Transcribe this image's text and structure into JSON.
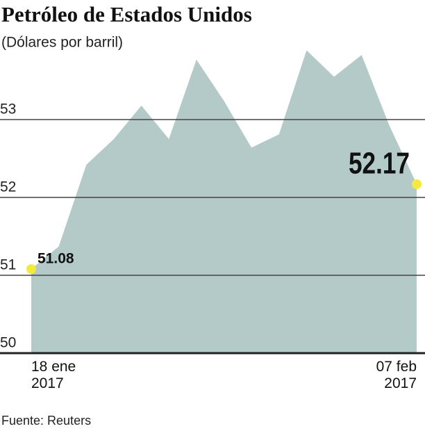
{
  "chart_data": {
    "type": "area",
    "title": "Petróleo de Estados Unidos",
    "subtitle": "(Dólares por barril)",
    "source": "Fuente: Reuters",
    "categories": [
      "18 ene 2017",
      null,
      null,
      null,
      null,
      null,
      null,
      null,
      null,
      null,
      null,
      null,
      null,
      null,
      "07 feb 2017"
    ],
    "values": [
      51.08,
      51.37,
      52.42,
      52.75,
      53.18,
      52.75,
      53.77,
      53.24,
      52.64,
      52.81,
      53.89,
      53.55,
      53.83,
      52.93,
      52.17
    ],
    "value_labels": [
      "51.08",
      null,
      null,
      null,
      null,
      null,
      null,
      null,
      null,
      null,
      null,
      null,
      null,
      null,
      "52.17"
    ],
    "color": "#b3cac9",
    "marker_color": "#f2ea3c",
    "ylim": [
      50,
      54
    ],
    "yticks": [
      50,
      51,
      52,
      53
    ],
    "grid": true
  }
}
